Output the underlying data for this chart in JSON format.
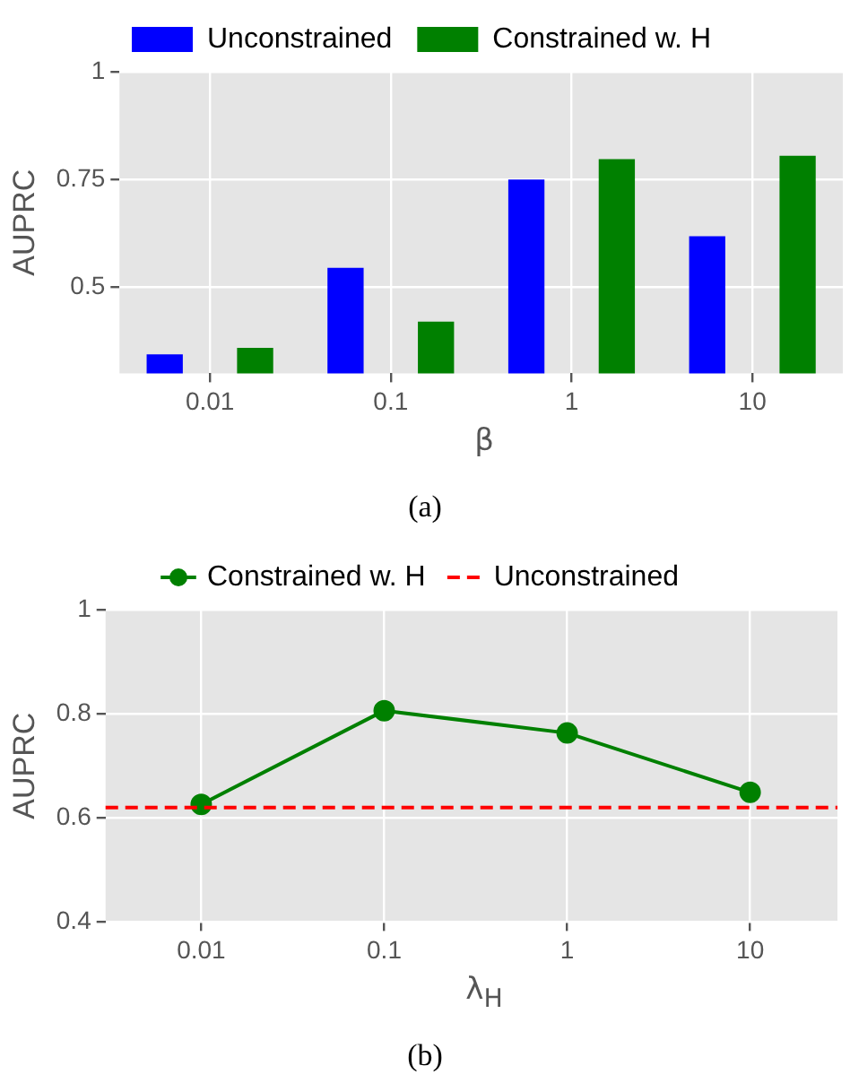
{
  "chart_data": [
    {
      "type": "bar",
      "categories": [
        "0.01",
        "0.1",
        "1",
        "10"
      ],
      "xlabel": "β",
      "ylabel": "AUPRC",
      "ylim": [
        0.3,
        1
      ],
      "yticks": [
        0.5,
        0.75,
        1
      ],
      "grid": true,
      "legend": "top",
      "series": [
        {
          "name": "Unconstrained",
          "color": "#0000ff",
          "values": [
            0.344,
            0.545,
            0.75,
            0.618
          ]
        },
        {
          "name": "Constrained w. H",
          "color": "#008000",
          "values": [
            0.359,
            0.42,
            0.797,
            0.805
          ]
        }
      ],
      "annotations": [
        "(a)"
      ]
    },
    {
      "type": "line",
      "x": [
        0.01,
        0.1,
        1,
        10
      ],
      "xlabel": "λ$_{H}$",
      "ylabel": "AUPRC",
      "log": "x",
      "xlim": [
        0.003,
        30
      ],
      "xticks": [
        0.01,
        0.1,
        1,
        10
      ],
      "ylim": [
        0.4,
        1
      ],
      "yticks": [
        0.4,
        0.6,
        0.8,
        1
      ],
      "grid": true,
      "legend": "top",
      "marker": "circle",
      "line_style": "solid",
      "series": [
        {
          "name": "Constrained w. H",
          "color": "#008000",
          "values": [
            0.626,
            0.806,
            0.763,
            0.649
          ]
        }
      ],
      "ref_lines": [
        {
          "axis": "y",
          "value": 0.62,
          "label": "Unconstrained",
          "color": "#ff0000",
          "line_style": "dashed"
        }
      ],
      "annotations": [
        "(b)"
      ]
    }
  ]
}
